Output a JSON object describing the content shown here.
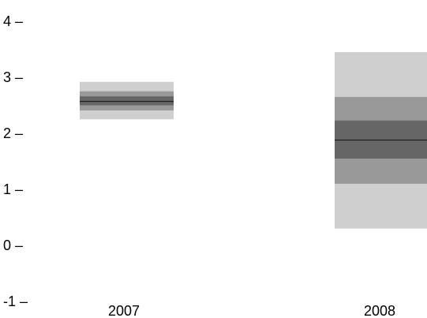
{
  "chart_data": {
    "type": "fan",
    "title": "",
    "xlabel": "",
    "ylabel": "",
    "categories": [
      "2007",
      "2008"
    ],
    "y_ticks": [
      "4 –",
      "3 –",
      "2 –",
      "1 –",
      "0 –",
      "-1 –"
    ],
    "y_tick_values": [
      4,
      3,
      2,
      1,
      0,
      -1
    ],
    "ylim": [
      -1,
      4
    ],
    "grid": false,
    "series": [
      {
        "category": "2007",
        "median": 2.57,
        "bands": [
          {
            "low": 2.25,
            "high": 2.92
          },
          {
            "low": 2.41,
            "high": 2.75
          },
          {
            "low": 2.5,
            "high": 2.66
          }
        ]
      },
      {
        "category": "2008",
        "median": 1.88,
        "bands": [
          {
            "low": 0.3,
            "high": 3.45
          },
          {
            "low": 1.1,
            "high": 2.65
          },
          {
            "low": 1.55,
            "high": 2.23
          }
        ]
      }
    ],
    "colors": {
      "band_outer": "#cfcfcf",
      "band_middle": "#999999",
      "band_inner": "#666666",
      "median_line": "#222222"
    }
  }
}
